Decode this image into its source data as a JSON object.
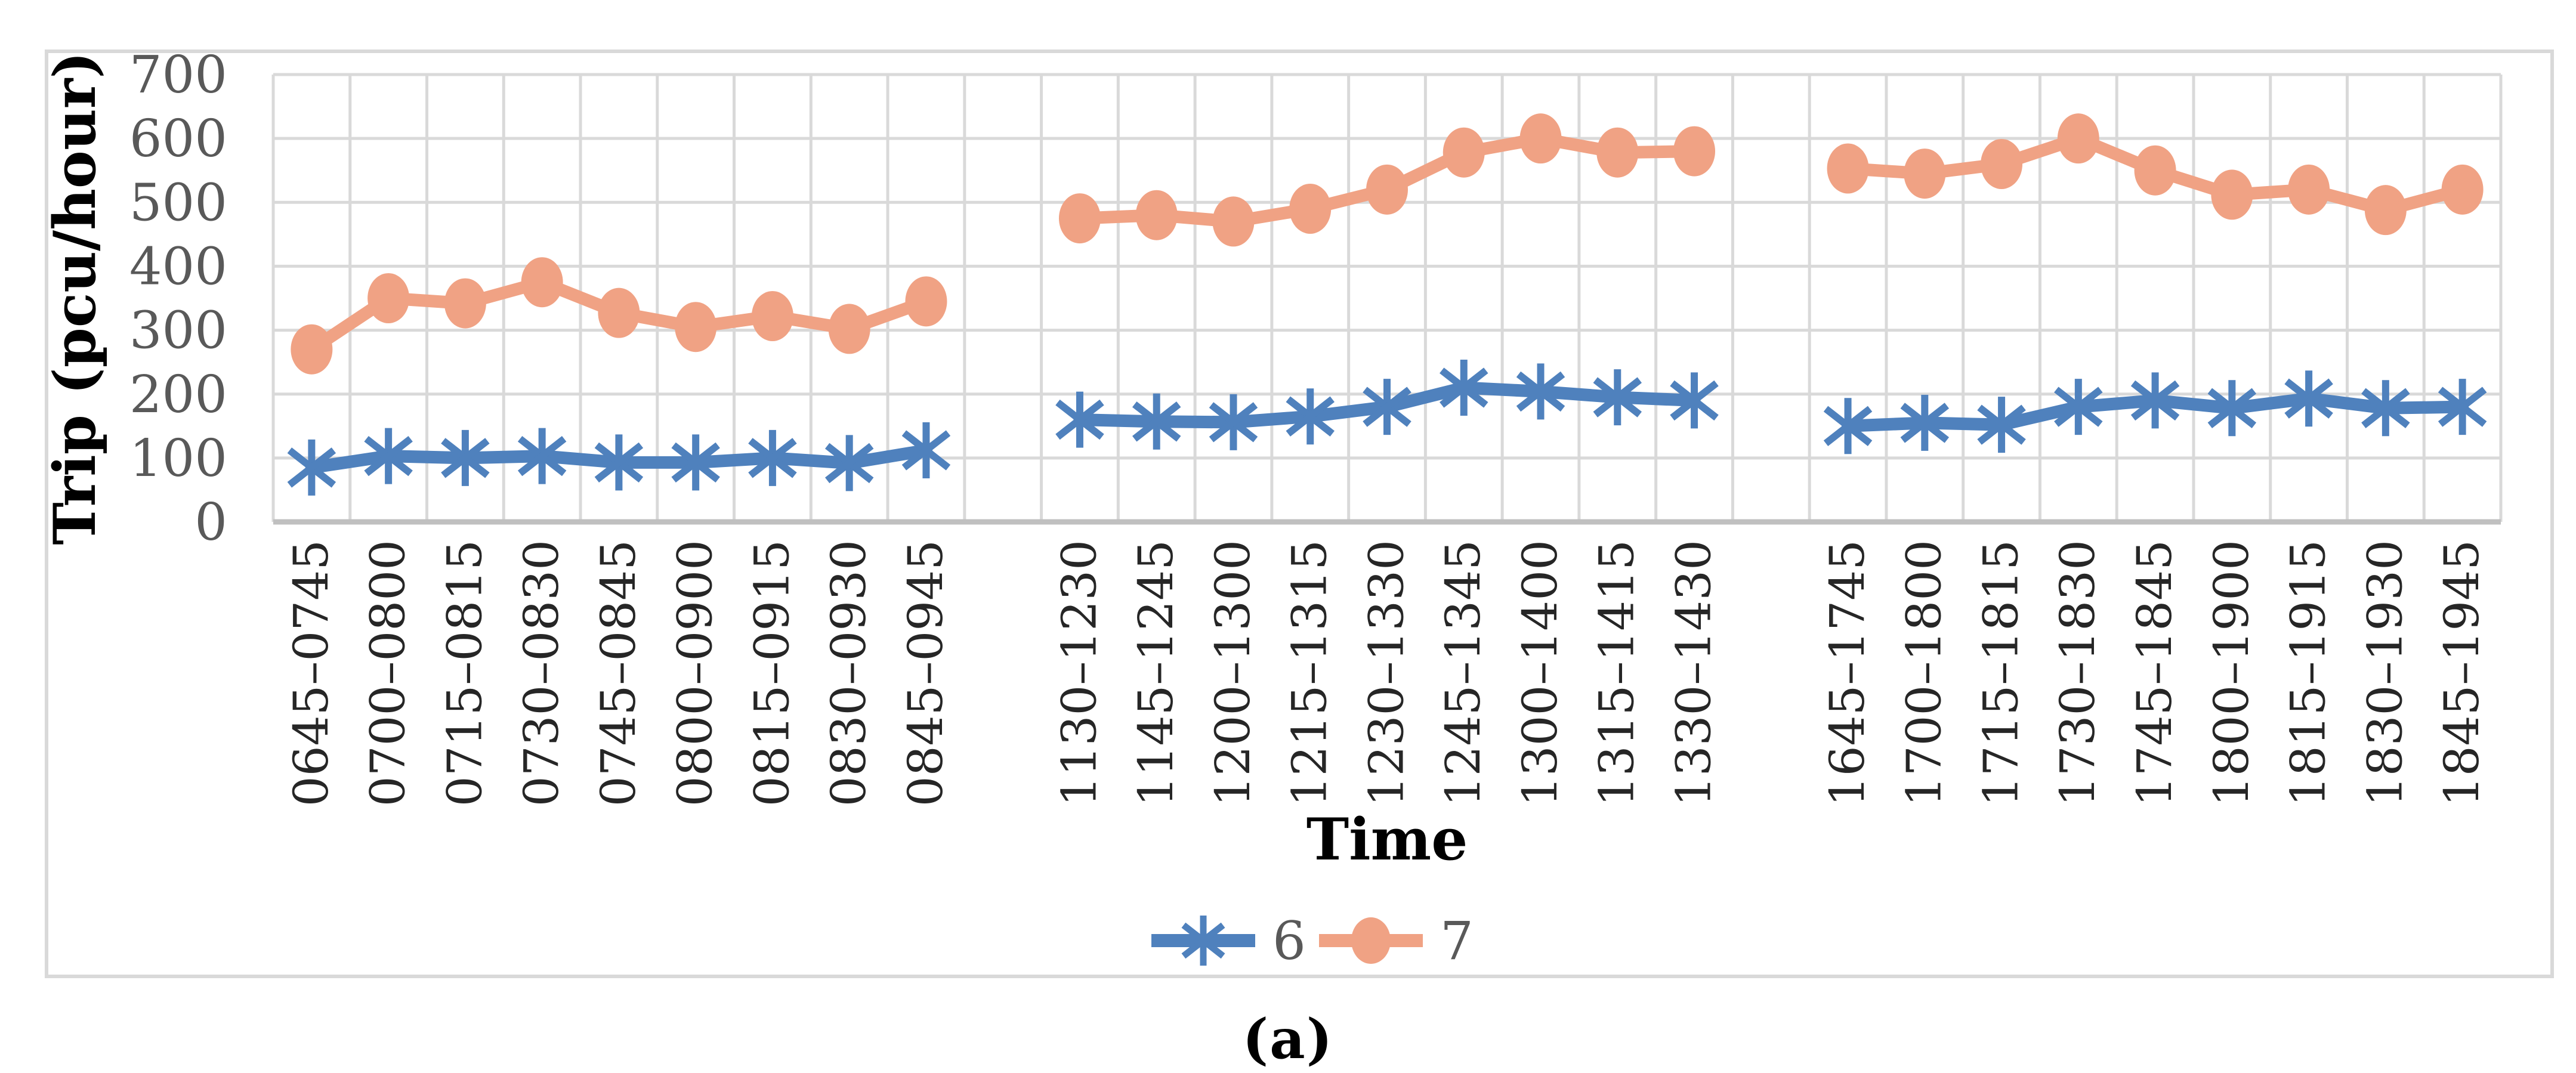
{
  "figure": {
    "caption": "(a)"
  },
  "chart_data": {
    "type": "line",
    "title": "",
    "xlabel": "Time",
    "ylabel": "Trip (pcu/hour)",
    "ylim": [
      0,
      700
    ],
    "yticks": [
      0,
      100,
      200,
      300,
      400,
      500,
      600,
      700
    ],
    "grid": true,
    "legend_position": "bottom-center",
    "gap_slots_between_groups": 1,
    "category_groups": [
      [
        "0645–0745",
        "0700–0800",
        "0715–0815",
        "0730–0830",
        "0745–0845",
        "0800–0900",
        "0815–0915",
        "0830–0930",
        "0845–0945"
      ],
      [
        "1130–1230",
        "1145–1245",
        "1200–1300",
        "1215–1315",
        "1230–1330",
        "1245–1345",
        "1300–1400",
        "1315–1415",
        "1330–1430"
      ],
      [
        "1645–1745",
        "1700–1800",
        "1715–1815",
        "1730–1830",
        "1745–1845",
        "1800–1900",
        "1815–1915",
        "1830–1930",
        "1845–1945"
      ]
    ],
    "series": [
      {
        "name": "6",
        "marker": "asterisk",
        "color": "#4F81BD",
        "values_by_group": [
          [
            85,
            103,
            100,
            103,
            93,
            93,
            100,
            92,
            112
          ],
          [
            160,
            157,
            156,
            165,
            180,
            210,
            204,
            195,
            190
          ],
          [
            150,
            155,
            152,
            180,
            190,
            178,
            193,
            178,
            180
          ]
        ]
      },
      {
        "name": "7",
        "marker": "circle",
        "color": "#F0A284",
        "values_by_group": [
          [
            270,
            350,
            342,
            375,
            327,
            305,
            322,
            302,
            345
          ],
          [
            475,
            480,
            470,
            490,
            520,
            578,
            600,
            578,
            580
          ],
          [
            553,
            545,
            560,
            600,
            550,
            512,
            520,
            488,
            520
          ]
        ]
      }
    ],
    "style": {
      "grid_color": "#D9D9D9",
      "axis_line_color": "#C0C0C0",
      "frame_border_color": "#D9D9D9",
      "y_tick_label_color": "#595959",
      "x_tick_label_color": "#262626",
      "axis_title_color": "#000000",
      "legend_text_color": "#595959"
    }
  }
}
